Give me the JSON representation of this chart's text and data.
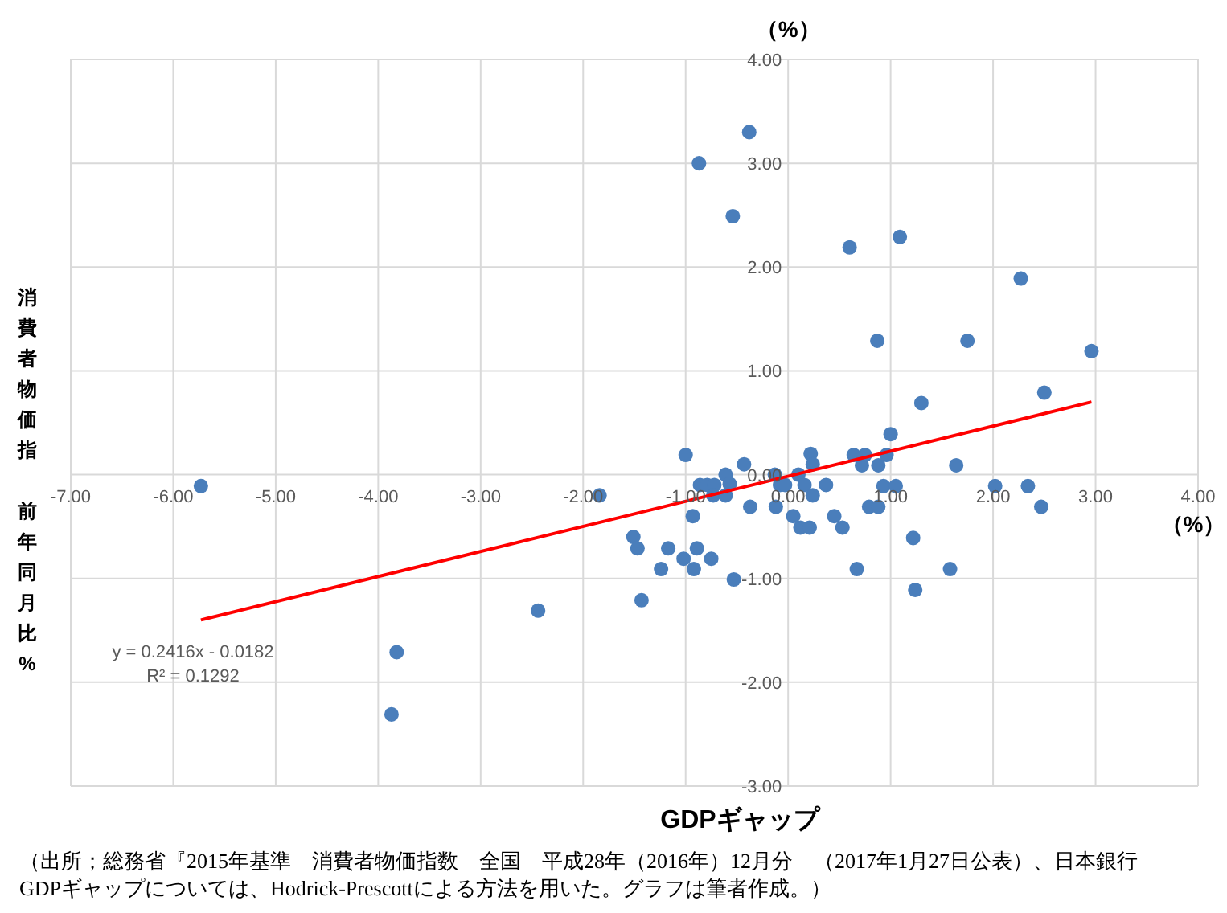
{
  "chart_data": {
    "type": "scatter",
    "xlabel": "GDPギャップ",
    "ylabel": "消費者物価指前年同月比%",
    "xlim": [
      -7,
      4
    ],
    "xticks": [
      {
        "value": -7,
        "label": "-7.00"
      },
      {
        "value": -6,
        "label": "-6.00"
      },
      {
        "value": -5,
        "label": "-5.00"
      },
      {
        "value": -4,
        "label": "-4.00"
      },
      {
        "value": -3,
        "label": "-3.00"
      },
      {
        "value": -2,
        "label": "-2.00"
      },
      {
        "value": -1,
        "label": "-1.00"
      },
      {
        "value": 0,
        "label": "0.00"
      },
      {
        "value": 1,
        "label": "1.00"
      },
      {
        "value": 2,
        "label": "2.00"
      },
      {
        "value": 3,
        "label": "3.00"
      },
      {
        "value": 4,
        "label": "4.00"
      }
    ],
    "ylim": [
      -3,
      4
    ],
    "yticks": [
      {
        "value": -3,
        "label": "-3.00"
      },
      {
        "value": -2,
        "label": "-2.00"
      },
      {
        "value": -1,
        "label": "-1.00"
      },
      {
        "value": 0,
        "label": "0.00"
      },
      {
        "value": 1,
        "label": "1.00"
      },
      {
        "value": 2,
        "label": "2.00"
      },
      {
        "value": 3,
        "label": "3.00"
      },
      {
        "value": 4,
        "label": "4.00"
      }
    ],
    "grid": true,
    "marker": "circle",
    "series": [
      {
        "color": "#4a7ebb",
        "x": [
          -0.38,
          -0.87,
          -0.54,
          0.6,
          1.09,
          2.27,
          0.87,
          1.75,
          2.96,
          2.5,
          1.3,
          1.0,
          -1.0,
          -0.43,
          -0.61,
          -0.57,
          -0.86,
          -0.79,
          -0.72,
          -0.73,
          -0.61,
          -1.84,
          -0.13,
          -0.08,
          -0.03,
          0.1,
          0.16,
          0.22,
          0.24,
          0.24,
          0.37,
          -0.93,
          -0.37,
          -0.12,
          0.05,
          0.12,
          0.21,
          0.45,
          0.53,
          -1.51,
          -1.47,
          -1.17,
          -0.89,
          -1.02,
          -0.75,
          -1.24,
          -0.92,
          -0.53,
          -1.43,
          0.67,
          0.64,
          0.75,
          0.96,
          0.72,
          0.88,
          1.64,
          0.93,
          1.05,
          2.02,
          2.34,
          2.47,
          0.79,
          0.88,
          1.22,
          1.58,
          1.24,
          -5.73,
          -2.44,
          -3.82,
          -3.87
        ],
        "values": [
          3.3,
          3.0,
          2.49,
          2.19,
          2.29,
          1.89,
          1.29,
          1.29,
          1.19,
          0.79,
          0.69,
          0.39,
          0.19,
          0.1,
          0.0,
          -0.09,
          -0.1,
          -0.1,
          -0.1,
          -0.2,
          -0.2,
          -0.2,
          0.0,
          -0.1,
          -0.1,
          0.0,
          -0.1,
          0.2,
          0.1,
          -0.2,
          -0.1,
          -0.4,
          -0.31,
          -0.31,
          -0.4,
          -0.51,
          -0.51,
          -0.4,
          -0.51,
          -0.6,
          -0.71,
          -0.71,
          -0.71,
          -0.81,
          -0.81,
          -0.91,
          -0.91,
          -1.01,
          -1.21,
          -0.91,
          0.19,
          0.19,
          0.19,
          0.09,
          0.09,
          0.09,
          -0.11,
          -0.11,
          -0.11,
          -0.11,
          -0.31,
          -0.31,
          -0.31,
          -0.61,
          -0.91,
          -1.11,
          -0.11,
          -1.31,
          -1.71,
          -2.31
        ]
      },
      {
        "type": "line",
        "marker": "none",
        "color": "#ff0000",
        "x": [
          -5.73,
          2.96
        ],
        "values": [
          -1.4,
          0.7
        ]
      }
    ],
    "annotations": [
      "（%）",
      "（%）",
      "y = 0.2416x - 0.0182",
      "R² = 0.1292",
      "（出所；総務省『2015年基準　消費者物価指数　全国　平成28年（2016年）12月分　（2017年1月27日公表）、日本銀行\nGDPギャップについては、Hodrick-Prescottによる方法を用いた。グラフは筆者作成。）"
    ]
  }
}
